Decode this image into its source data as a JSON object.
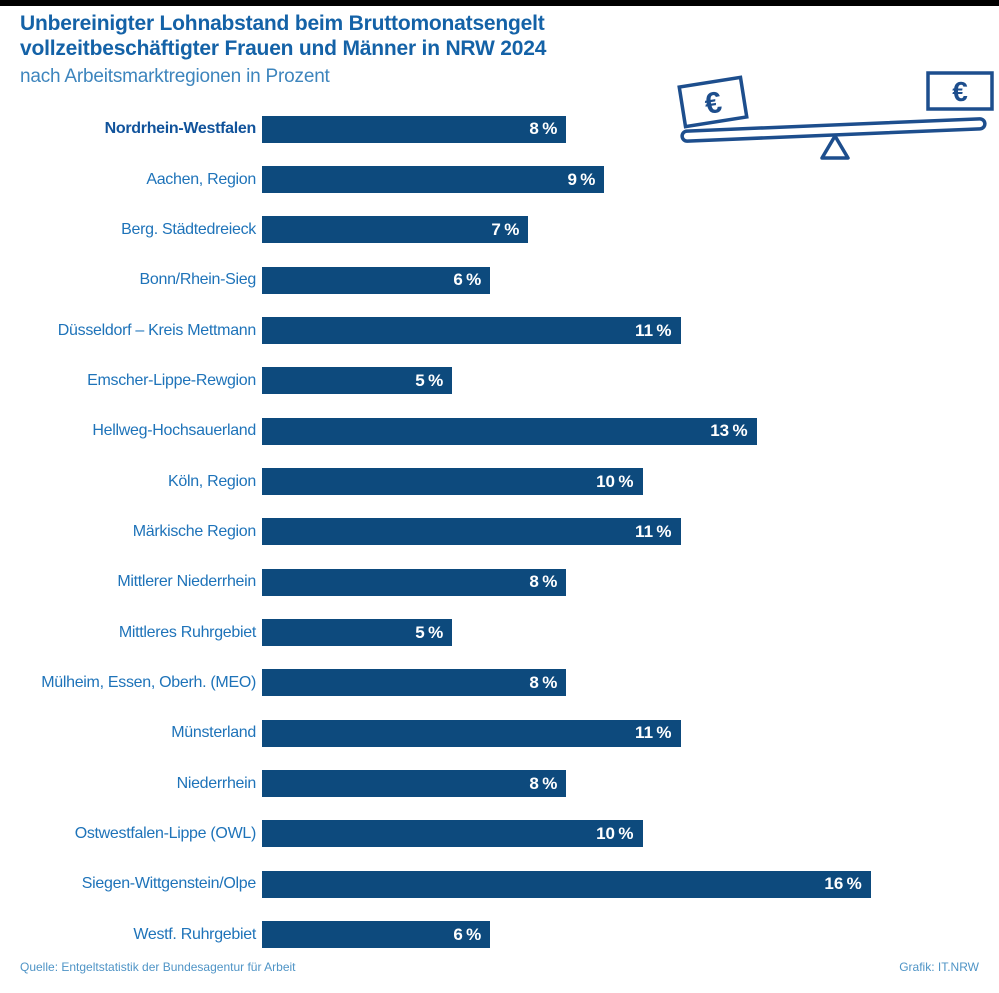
{
  "header": {
    "title_line1": "Unbereinigter Lohnabstand beim Bruttomonatsengelt",
    "title_line2": "vollzeitbeschäftigter Frauen und Männer in NRW 2024",
    "subtitle": "nach Arbeitsmarktregionen in Prozent"
  },
  "icon": {
    "name": "seesaw-balance-with-euro-banknotes",
    "euro_left": "€",
    "euro_right": "€",
    "color": "#1d4e8d"
  },
  "footer": {
    "source": "Quelle: Entgeltstatistik der Bundesagentur für Arbeit",
    "credit": "Grafik: IT.NRW"
  },
  "colors": {
    "bar": "#0d4a7d",
    "title": "#1462a7",
    "subtitle": "#3d85bd",
    "label": "#1e73b9",
    "label_emphasis": "#11539b",
    "value_text": "#ffffff",
    "footer_text": "#4f94c6",
    "top_strip": "#000000"
  },
  "chart_data": {
    "type": "bar",
    "orientation": "horizontal",
    "title": "Unbereinigter Lohnabstand beim Bruttomonatsengelt vollzeitbeschäftigter Frauen und Männer in NRW 2024",
    "subtitle": "nach Arbeitsmarktregionen in Prozent",
    "unit": "%",
    "value_suffix": " %",
    "categories": [
      "Nordrhein-Westfalen",
      "Aachen, Region",
      "Berg. Städtedreieck",
      "Bonn/Rhein-Sieg",
      "Düsseldorf – Kreis Mettmann",
      "Emscher-Lippe-Rewgion",
      "Hellweg-Hochsauerland",
      "Köln, Region",
      "Märkische Region",
      "Mittlerer Niederrhein",
      "Mittleres Ruhrgebiet",
      "Mülheim, Essen, Oberh. (MEO)",
      "Münsterland",
      "Niederrhein",
      "Ostwestfalen-Lippe (OWL)",
      "Siegen-Wittgenstein/Olpe",
      "Westf. Ruhrgebiet"
    ],
    "values": [
      8,
      9,
      7,
      6,
      11,
      5,
      13,
      10,
      11,
      8,
      5,
      8,
      11,
      8,
      10,
      16,
      6
    ],
    "emphasized_category_index": 0,
    "xlim": [
      0,
      16.8
    ],
    "gridlines": false,
    "axis_ticks_visible": false,
    "value_labels_position": "inside-end",
    "source": "Quelle: Entgeltstatistik der Bundesagentur für Arbeit",
    "credit": "Grafik: IT.NRW"
  }
}
